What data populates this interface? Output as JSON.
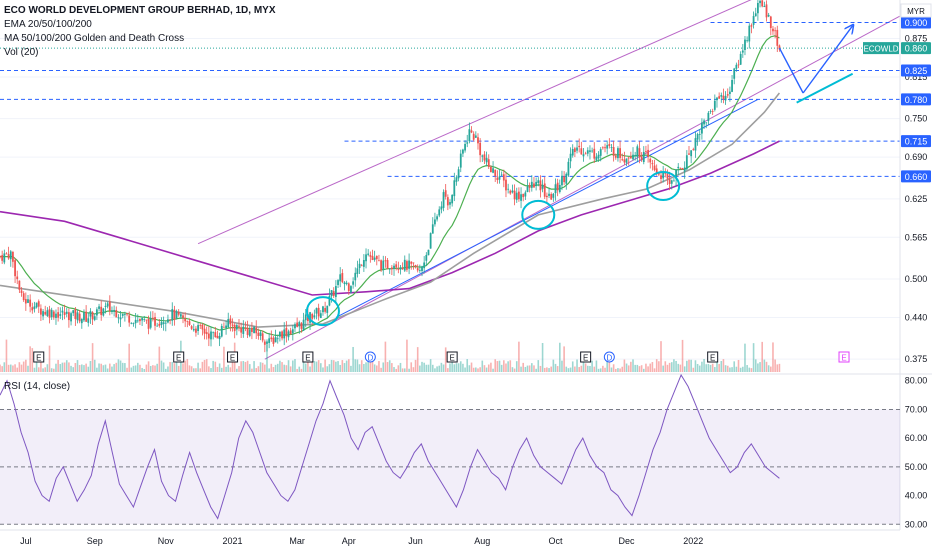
{
  "legend": {
    "title": "ECO WORLD DEVELOPMENT GROUP BERHAD, 1D, MYX",
    "ema": "EMA 20/50/100/200",
    "ma": "MA 50/100/200 Golden and Death Cross",
    "vol": "Vol (20)"
  },
  "rsi_title": "RSI (14, close)",
  "currency": "MYR",
  "ticker_label": "ECOWLD",
  "colors": {
    "up": "#26a69a",
    "down": "#ef5350",
    "ema": "#4caf50",
    "sma100": "#9e9e9e",
    "sma200": "#9c27b0",
    "channel": "#ba68c8",
    "hline": "#2962ff",
    "rsi": "#7e57c2",
    "circle": "#00bcd4",
    "arrow": "#2962ff"
  },
  "chart_data": [
    {
      "type": "candlestick",
      "x_ticks": [
        "Jul",
        "Sep",
        "Nov",
        "2021",
        "Mar",
        "Apr",
        "Jun",
        "Aug",
        "Oct",
        "Dec",
        "2022"
      ],
      "y_ticks": [
        0.375,
        0.44,
        0.5,
        0.565,
        0.625,
        0.69,
        0.75,
        0.815,
        0.875
      ],
      "price_labels": [
        {
          "value": "0.900",
          "kind": "line"
        },
        {
          "value": "0.860",
          "kind": "last"
        },
        {
          "value": "0.825",
          "kind": "line"
        },
        {
          "value": "0.780",
          "kind": "line"
        },
        {
          "value": "0.715",
          "kind": "line"
        },
        {
          "value": "0.660",
          "kind": "line"
        }
      ],
      "horizontal_levels": [
        0.9,
        0.825,
        0.78,
        0.715,
        0.66
      ],
      "last_price": 0.86,
      "ylim": [
        0.355,
        0.935
      ],
      "close_path": [
        [
          0,
          0.535
        ],
        [
          5,
          0.54
        ],
        [
          10,
          0.47
        ],
        [
          20,
          0.45
        ],
        [
          30,
          0.445
        ],
        [
          40,
          0.44
        ],
        [
          50,
          0.455
        ],
        [
          60,
          0.44
        ],
        [
          70,
          0.43
        ],
        [
          80,
          0.445
        ],
        [
          90,
          0.425
        ],
        [
          100,
          0.41
        ],
        [
          105,
          0.43
        ],
        [
          110,
          0.425
        ],
        [
          120,
          0.415
        ],
        [
          125,
          0.4
        ],
        [
          130,
          0.415
        ],
        [
          135,
          0.42
        ],
        [
          140,
          0.43
        ],
        [
          145,
          0.445
        ],
        [
          150,
          0.45
        ],
        [
          155,
          0.48
        ],
        [
          158,
          0.5
        ],
        [
          162,
          0.49
        ],
        [
          167,
          0.52
        ],
        [
          170,
          0.545
        ],
        [
          173,
          0.53
        ],
        [
          178,
          0.52
        ],
        [
          183,
          0.525
        ],
        [
          190,
          0.52
        ],
        [
          195,
          0.51
        ],
        [
          198,
          0.54
        ],
        [
          202,
          0.59
        ],
        [
          206,
          0.63
        ],
        [
          208,
          0.615
        ],
        [
          212,
          0.66
        ],
        [
          215,
          0.7
        ],
        [
          218,
          0.73
        ],
        [
          221,
          0.72
        ],
        [
          224,
          0.69
        ],
        [
          228,
          0.67
        ],
        [
          232,
          0.66
        ],
        [
          236,
          0.64
        ],
        [
          240,
          0.63
        ],
        [
          244,
          0.635
        ],
        [
          248,
          0.65
        ],
        [
          252,
          0.64
        ],
        [
          255,
          0.625
        ],
        [
          258,
          0.64
        ],
        [
          262,
          0.66
        ],
        [
          265,
          0.69
        ],
        [
          268,
          0.705
        ],
        [
          272,
          0.7
        ],
        [
          276,
          0.695
        ],
        [
          280,
          0.705
        ],
        [
          285,
          0.7
        ],
        [
          290,
          0.69
        ],
        [
          295,
          0.7
        ],
        [
          300,
          0.69
        ],
        [
          304,
          0.67
        ],
        [
          308,
          0.66
        ],
        [
          311,
          0.65
        ],
        [
          314,
          0.665
        ],
        [
          318,
          0.68
        ],
        [
          322,
          0.71
        ],
        [
          326,
          0.74
        ],
        [
          330,
          0.76
        ],
        [
          334,
          0.79
        ],
        [
          337,
          0.78
        ],
        [
          340,
          0.81
        ],
        [
          343,
          0.84
        ],
        [
          346,
          0.87
        ],
        [
          349,
          0.9
        ],
        [
          352,
          0.93
        ],
        [
          354,
          0.925
        ],
        [
          356,
          0.915
        ],
        [
          358,
          0.9
        ],
        [
          360,
          0.88
        ],
        [
          362,
          0.86
        ]
      ],
      "last_index": 362,
      "x_range": [
        0,
        418
      ],
      "sma100_path": [
        [
          0,
          0.49
        ],
        [
          40,
          0.47
        ],
        [
          80,
          0.45
        ],
        [
          120,
          0.425
        ],
        [
          150,
          0.43
        ],
        [
          180,
          0.47
        ],
        [
          200,
          0.495
        ],
        [
          220,
          0.54
        ],
        [
          250,
          0.6
        ],
        [
          280,
          0.625
        ],
        [
          300,
          0.64
        ],
        [
          320,
          0.67
        ],
        [
          340,
          0.71
        ],
        [
          355,
          0.76
        ],
        [
          362,
          0.79
        ]
      ],
      "sma200_path": [
        [
          0,
          0.605
        ],
        [
          30,
          0.59
        ],
        [
          60,
          0.56
        ],
        [
          90,
          0.53
        ],
        [
          120,
          0.5
        ],
        [
          145,
          0.475
        ],
        [
          170,
          0.48
        ],
        [
          190,
          0.485
        ],
        [
          210,
          0.51
        ],
        [
          230,
          0.54
        ],
        [
          250,
          0.575
        ],
        [
          270,
          0.6
        ],
        [
          290,
          0.62
        ],
        [
          310,
          0.64
        ],
        [
          330,
          0.665
        ],
        [
          350,
          0.695
        ],
        [
          362,
          0.715
        ]
      ],
      "channel_upper": [
        [
          92,
          0.555
        ],
        [
          362,
          0.955
        ]
      ],
      "channel_lower": [
        [
          123,
          0.375
        ],
        [
          418,
          0.91
        ]
      ],
      "trendline": [
        [
          156,
          0.44
        ],
        [
          352,
          0.78
        ]
      ],
      "circles": [
        [
          150,
          0.45
        ],
        [
          250,
          0.6
        ],
        [
          308,
          0.645
        ]
      ],
      "arrows": [
        {
          "from": [
            362,
            0.86
          ],
          "to": [
            373,
            0.79
          ]
        },
        {
          "from": [
            373,
            0.79
          ],
          "to": [
            396,
            0.895
          ]
        },
        {
          "from": [
            370,
            0.775
          ],
          "to": [
            396,
            0.82
          ]
        }
      ],
      "event_markers": [
        {
          "index": 18,
          "label": "E"
        },
        {
          "index": 83,
          "label": "E"
        },
        {
          "index": 108,
          "label": "E"
        },
        {
          "index": 143,
          "label": "E"
        },
        {
          "index": 172,
          "label": "D"
        },
        {
          "index": 210,
          "label": "E"
        },
        {
          "index": 272,
          "label": "E"
        },
        {
          "index": 283,
          "label": "D"
        },
        {
          "index": 331,
          "label": "E"
        },
        {
          "index": 392,
          "label": "E"
        }
      ]
    },
    {
      "type": "line",
      "series": [
        {
          "values": [
            75,
            80,
            72,
            62,
            55,
            45,
            40,
            38,
            46,
            50,
            44,
            38,
            42,
            47,
            58,
            66,
            55,
            44,
            40,
            36,
            43,
            50,
            56,
            45,
            40,
            38,
            47,
            55,
            48,
            42,
            36,
            32,
            40,
            48,
            60,
            66,
            62,
            55,
            48,
            44,
            40,
            38,
            42,
            50,
            58,
            66,
            72,
            80,
            74,
            68,
            60,
            56,
            62,
            64,
            58,
            52,
            48,
            46,
            50,
            55,
            58,
            52,
            48,
            44,
            40,
            36,
            42,
            50,
            56,
            52,
            48,
            46,
            42,
            50,
            56,
            60,
            54,
            50,
            48,
            46,
            44,
            50,
            56,
            60,
            54,
            50,
            48,
            42,
            40,
            36,
            33,
            40,
            48,
            56,
            62,
            70,
            76,
            82,
            78,
            72,
            66,
            60,
            56,
            52,
            48,
            50,
            55,
            58,
            54,
            50,
            48,
            46
          ]
        }
      ],
      "y_ticks": [
        30.0,
        40.0,
        50.0,
        60.0,
        70.0,
        80.0
      ],
      "ylim": [
        28,
        82
      ],
      "bands": [
        30,
        50,
        70
      ]
    }
  ]
}
